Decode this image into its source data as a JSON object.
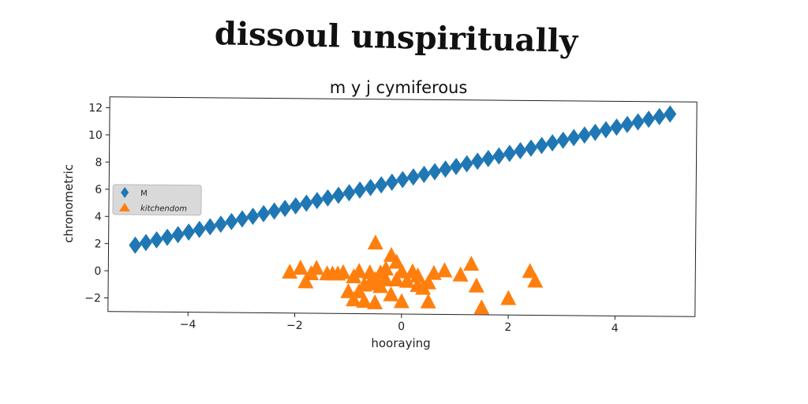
{
  "page": {
    "title": "dissoul unspiritually"
  },
  "chart_data": {
    "type": "scatter",
    "title": "m y j cymiferous",
    "xlabel": "hooraying",
    "ylabel": "chronometric",
    "xlim": [
      -5.5,
      5.5
    ],
    "ylim": [
      -3,
      12.8
    ],
    "xticks": [
      -4,
      -2,
      0,
      2,
      4
    ],
    "yticks": [
      -2,
      0,
      2,
      4,
      6,
      8,
      10,
      12
    ],
    "grid": false,
    "legend_position": "center-left",
    "series": [
      {
        "name": "M",
        "marker": "diamond",
        "color": "#1f77b4",
        "x": [
          -5.0,
          -4.8,
          -4.6,
          -4.4,
          -4.2,
          -4.0,
          -3.8,
          -3.6,
          -3.4,
          -3.2,
          -3.0,
          -2.8,
          -2.6,
          -2.4,
          -2.2,
          -2.0,
          -1.8,
          -1.6,
          -1.4,
          -1.2,
          -1.0,
          -0.8,
          -0.6,
          -0.4,
          -0.2,
          0.0,
          0.2,
          0.4,
          0.6,
          0.8,
          1.0,
          1.2,
          1.4,
          1.6,
          1.8,
          2.0,
          2.2,
          2.4,
          2.6,
          2.8,
          3.0,
          3.2,
          3.4,
          3.6,
          3.8,
          4.0,
          4.2,
          4.4,
          4.6,
          4.8,
          5.0
        ],
        "y": [
          1.9,
          2.1,
          2.3,
          2.5,
          2.7,
          2.9,
          3.1,
          3.3,
          3.5,
          3.7,
          3.9,
          4.1,
          4.3,
          4.5,
          4.7,
          4.9,
          5.1,
          5.3,
          5.5,
          5.7,
          5.9,
          6.1,
          6.3,
          6.5,
          6.7,
          6.9,
          7.1,
          7.3,
          7.5,
          7.7,
          7.9,
          8.1,
          8.3,
          8.5,
          8.7,
          8.9,
          9.1,
          9.3,
          9.5,
          9.7,
          9.9,
          10.1,
          10.3,
          10.5,
          10.7,
          10.9,
          11.1,
          11.3,
          11.5,
          11.7,
          11.9
        ]
      },
      {
        "name": "kitchendom",
        "marker": "triangle",
        "color": "#ff7f0e",
        "x": [
          -2.1,
          -1.9,
          -1.8,
          -1.7,
          -1.6,
          -1.4,
          -1.3,
          -1.2,
          -1.1,
          -1.0,
          -0.9,
          -0.9,
          -0.8,
          -0.8,
          -0.7,
          -0.7,
          -0.6,
          -0.6,
          -0.5,
          -0.5,
          -0.5,
          -0.4,
          -0.4,
          -0.3,
          -0.3,
          -0.2,
          -0.2,
          -0.1,
          -0.1,
          0.0,
          0.0,
          0.1,
          0.2,
          0.3,
          0.3,
          0.4,
          0.5,
          0.5,
          0.6,
          0.8,
          1.1,
          1.3,
          1.4,
          1.5,
          2.0,
          2.4,
          2.5
        ],
        "y": [
          0.0,
          0.3,
          -0.7,
          -0.1,
          0.3,
          -0.1,
          -0.1,
          -0.1,
          0.0,
          -1.4,
          -0.3,
          -2.0,
          0.1,
          -1.4,
          -2.1,
          -0.9,
          0.0,
          -0.8,
          2.2,
          -0.5,
          -2.2,
          0.0,
          -1.0,
          0.3,
          -0.5,
          -1.6,
          1.3,
          0.8,
          -0.5,
          0.1,
          -2.1,
          -0.6,
          0.1,
          -0.2,
          -0.9,
          -1.1,
          -0.7,
          -2.1,
          0.0,
          0.2,
          -0.1,
          0.7,
          -0.9,
          -2.5,
          -1.8,
          0.2,
          -0.5
        ]
      }
    ]
  }
}
